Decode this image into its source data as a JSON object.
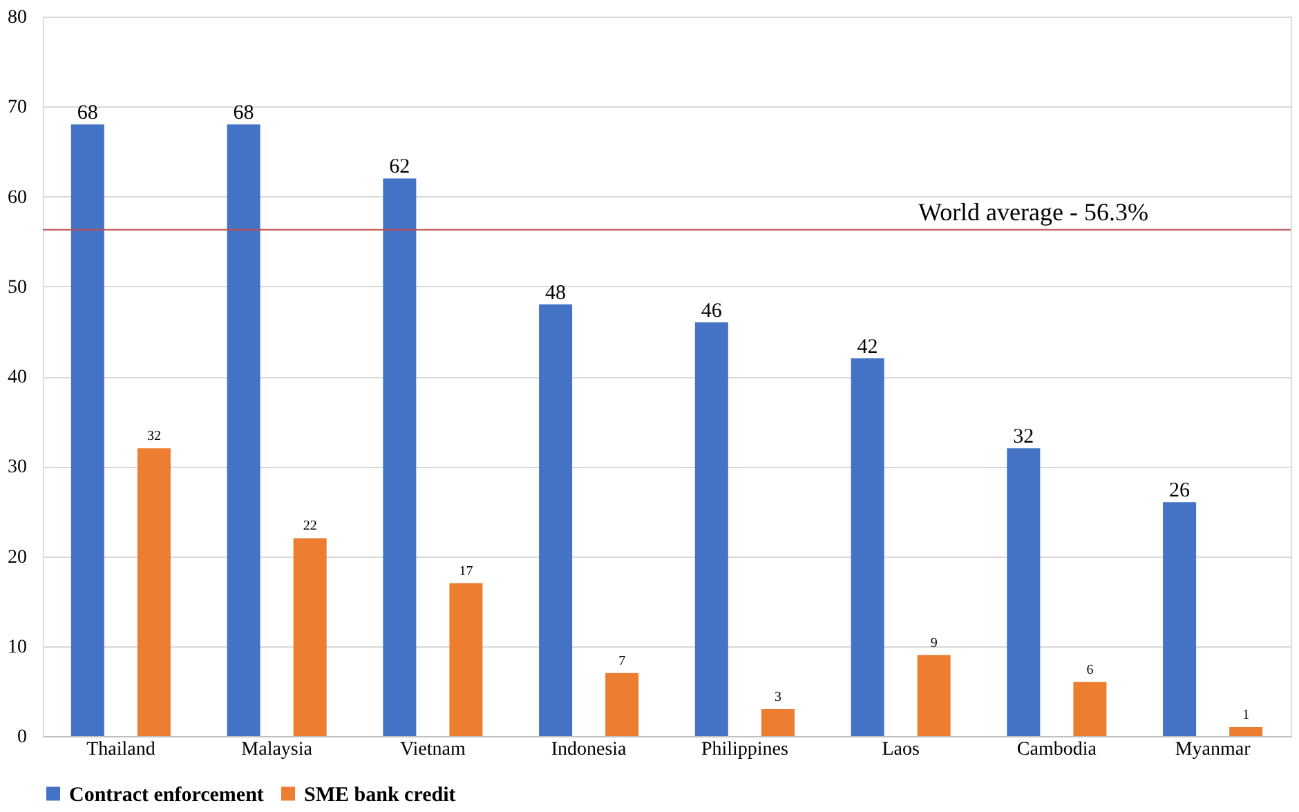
{
  "chart_data": {
    "type": "bar",
    "categories": [
      "Thailand",
      "Malaysia",
      "Vietnam",
      "Indonesia",
      "Philippines",
      "Laos",
      "Cambodia",
      "Myanmar"
    ],
    "series": [
      {
        "name": "Contract enforcement",
        "color": "#4472c4",
        "values": [
          68,
          68,
          62,
          48,
          46,
          42,
          32,
          26
        ]
      },
      {
        "name": "SME bank credit",
        "color": "#ed7d31",
        "values": [
          32,
          22,
          17,
          7,
          3,
          9,
          6,
          1
        ]
      }
    ],
    "ylim": [
      0,
      80
    ],
    "yticks": [
      0,
      10,
      20,
      30,
      40,
      50,
      60,
      70,
      80
    ],
    "grid": "y",
    "legend": "bottom",
    "data_labels": true,
    "ref_lines": [
      {
        "axis": "y",
        "value": 56.3,
        "label": "World average - 56.3%",
        "color": "#c0504d"
      }
    ]
  }
}
